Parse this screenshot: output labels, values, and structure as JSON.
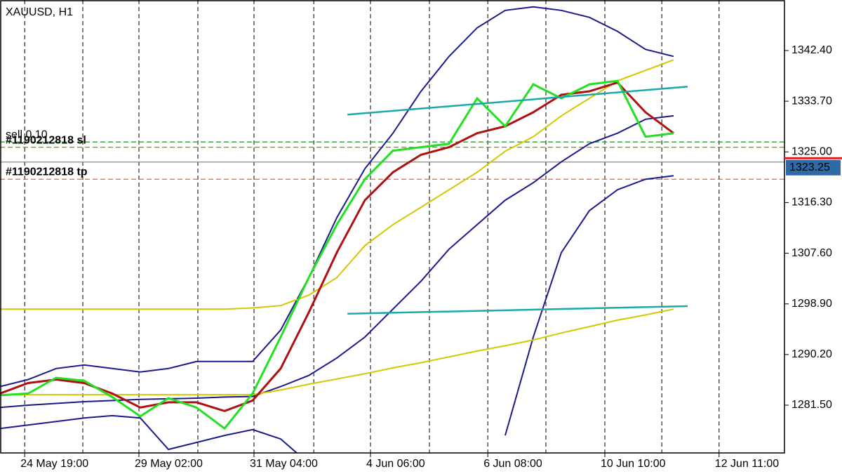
{
  "chart_data": {
    "type": "line",
    "title": "XAUUSD, H1",
    "x": [
      0,
      5,
      10,
      15,
      20,
      25,
      30,
      35,
      40,
      45,
      50,
      55,
      60,
      65,
      70,
      75,
      80,
      85,
      90,
      95,
      100,
      105,
      110,
      115,
      120,
      125
    ],
    "xlim": [
      0,
      139.75
    ],
    "xticks": [
      {
        "value": 4.4,
        "label": "24 May 19:00"
      },
      {
        "value": 24.75,
        "label": "29 May 02:00"
      },
      {
        "value": 45.25,
        "label": "31 May 04:00"
      },
      {
        "value": 66,
        "label": "4 Jun 06:00"
      },
      {
        "value": 86.9,
        "label": "6 Jun 08:00"
      },
      {
        "value": 107.75,
        "label": "10 Jun 10:00"
      },
      {
        "value": 128.1,
        "label": "12 Jun 11:00"
      }
    ],
    "xgrid": [
      14.75,
      35.25,
      55.9,
      76.5,
      97.25,
      117.9
    ],
    "ylim": [
      1273.3,
      1351.08
    ],
    "yticks": [
      {
        "value": 1342.4,
        "label": "1342.40"
      },
      {
        "value": 1333.7,
        "label": "1333.70"
      },
      {
        "value": 1325,
        "label": "1325.00"
      },
      {
        "value": 1316.3,
        "label": "1316.30"
      },
      {
        "value": 1307.6,
        "label": "1307.60"
      },
      {
        "value": 1298.9,
        "label": "1298.90"
      },
      {
        "value": 1290.2,
        "label": "1290.20"
      },
      {
        "value": 1281.5,
        "label": "1281.50"
      }
    ],
    "grid": true,
    "series": [
      {
        "color": "#1a1a8c",
        "width": 2,
        "values": [
          1277.5,
          1278.1,
          1278.7,
          1279.3,
          1279.7,
          1279.3,
          1273.9,
          1275.1,
          1276.3,
          1277.3,
          1275.7,
          1271.5,
          null,
          null,
          null,
          null,
          null,
          null,
          1276.3,
          1293.2,
          1307.7,
          1314.9,
          1318.5,
          1320.3,
          1320.9,
          null
        ]
      },
      {
        "color": "#1a1a8c",
        "width": 2,
        "values": [
          1281.1,
          1281.5,
          1281.8,
          1282.1,
          1282.3,
          1282.5,
          1282.6,
          1282.7,
          1282.9,
          1283.0,
          1284.7,
          1286.6,
          1289.6,
          1293.2,
          1298.0,
          1302.8,
          1308.3,
          1312.5,
          1316.7,
          1319.7,
          1323.3,
          1326.4,
          1328.2,
          1330.6,
          1331.2,
          null
        ]
      },
      {
        "color": "#1a1a8c",
        "width": 2,
        "values": [
          1284.7,
          1285.9,
          1287.8,
          1288.4,
          1287.8,
          1287.2,
          1287.8,
          1289.0,
          1289.0,
          1289.0,
          1294.4,
          1303.4,
          1313.7,
          1322.1,
          1328.2,
          1335.4,
          1341.4,
          1346.3,
          1349.3,
          1349.9,
          1349.3,
          1348.1,
          1345.7,
          1342.6,
          1341.4,
          null
        ]
      },
      {
        "color": "#d4c800",
        "width": 2,
        "values": [
          1283.3,
          1283.3,
          1283.3,
          1283.3,
          1283.3,
          1283.3,
          1283.3,
          1283.3,
          1283.3,
          1283.3,
          1284.1,
          1285.1,
          1286.0,
          1286.9,
          1287.9,
          1288.8,
          1289.8,
          1290.8,
          1291.7,
          1292.7,
          1293.9,
          1295.0,
          1296.1,
          1297.0,
          1298.0,
          null
        ]
      },
      {
        "color": "#d4c800",
        "width": 2,
        "values": [
          1298.0,
          1298.0,
          1298.0,
          1298.0,
          1298.0,
          1298.0,
          1298.0,
          1298.0,
          1298.0,
          1298.2,
          1298.6,
          1300.4,
          1303.4,
          1308.9,
          1312.5,
          1315.5,
          1318.5,
          1321.5,
          1325.1,
          1327.6,
          1331.2,
          1334.2,
          1337.2,
          1339.0,
          1340.8,
          null
        ]
      },
      {
        "color": "#b01010",
        "width": 3,
        "values": [
          1283.5,
          1285.3,
          1285.9,
          1285.3,
          1283.5,
          1281.1,
          1282.0,
          1282.0,
          1280.5,
          1282.3,
          1287.8,
          1297.4,
          1307.7,
          1316.7,
          1321.5,
          1324.5,
          1325.8,
          1328.2,
          1329.4,
          1331.8,
          1334.8,
          1335.4,
          1336.9,
          1331.8,
          1328.2,
          null
        ]
      },
      {
        "color": "#22e022",
        "width": 3,
        "values": [
          1283.2,
          1283.5,
          1286.2,
          1285.7,
          1282.9,
          1279.6,
          1282.7,
          1281.1,
          1277.5,
          1283.5,
          1293.2,
          1303.4,
          1312.5,
          1320.3,
          1325.2,
          1325.8,
          1326.4,
          1334.2,
          1329.4,
          1336.6,
          1334.2,
          1336.6,
          1337.2,
          1327.6,
          1328.2,
          null
        ]
      }
    ],
    "trendlines": [
      {
        "color": "#1aa8a8",
        "x": [
          61.9,
          122.5
        ],
        "values": [
          1331.4,
          1336.2
        ]
      },
      {
        "color": "#1aa8a8",
        "x": [
          61.9,
          122.5
        ],
        "values": [
          1297.2,
          1298.5
        ]
      }
    ],
    "levels": [
      {
        "value": 1326.7,
        "color": "#2e9e2e",
        "dash": true
      },
      {
        "value": 1325.8,
        "color": "#b07a00",
        "dash": true
      },
      {
        "value": 1323.25,
        "color": "#8a8a8a",
        "dash": false
      },
      {
        "value": 1320.3,
        "color": "#f06040",
        "dash": true
      }
    ],
    "order_labels": [
      "sell 0.10",
      "#1190212818 sl",
      "#1190212818 tp"
    ],
    "current_price": 1323.25
  }
}
